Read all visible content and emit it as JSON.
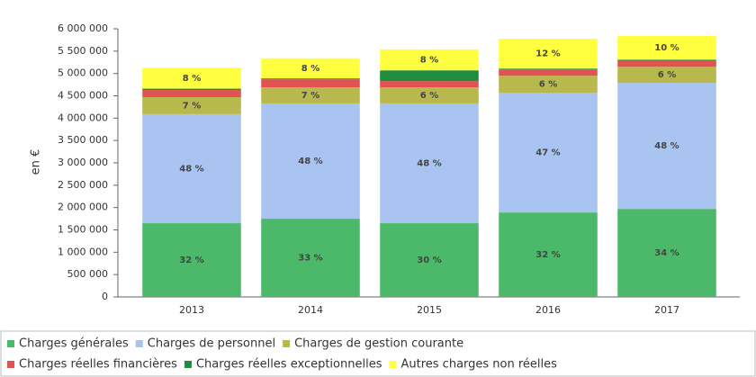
{
  "chart_data": {
    "type": "stacked_bar",
    "y_label": "en €",
    "categories": [
      "2013",
      "2014",
      "2015",
      "2016",
      "2017"
    ],
    "series": [
      {
        "name": "Charges générales",
        "color": "#4cb86a",
        "values": [
          1650000,
          1750000,
          1650000,
          1890000,
          1970000
        ],
        "labels": [
          "32 %",
          "33 %",
          "30 %",
          "32 %",
          "34 %"
        ]
      },
      {
        "name": "Charges de personnel",
        "color": "#a9c4f0",
        "values": [
          2440000,
          2580000,
          2680000,
          2680000,
          2820000
        ],
        "labels": [
          "48 %",
          "48 %",
          "48 %",
          "47 %",
          "48 %"
        ]
      },
      {
        "name": "Charges de gestion courante",
        "color": "#b8b84c",
        "values": [
          380000,
          360000,
          360000,
          380000,
          360000
        ],
        "labels": [
          "7 %",
          "7 %",
          "6 %",
          "6 %",
          "6 %"
        ]
      },
      {
        "name": "Charges réelles financières",
        "color": "#e25252",
        "values": [
          160000,
          180000,
          140000,
          140000,
          130000
        ],
        "labels": [
          null,
          null,
          null,
          null,
          null
        ]
      },
      {
        "name": "Charges réelles exceptionnelles",
        "color": "#1f8c3e",
        "values": [
          30000,
          20000,
          240000,
          20000,
          30000
        ],
        "labels": [
          null,
          null,
          null,
          null,
          null
        ]
      },
      {
        "name": "Autres charges non réelles",
        "color": "#ffff40",
        "values": [
          470000,
          450000,
          470000,
          670000,
          530000
        ],
        "labels": [
          "8 %",
          "8 %",
          "8 %",
          "12 %",
          "10 %"
        ]
      }
    ],
    "ylim": [
      0,
      6000000
    ],
    "yticks": [
      0,
      {
        "value": 500000,
        "label": "500 000"
      },
      {
        "value": 1000000,
        "label": "1 000 000"
      },
      {
        "value": 1500000,
        "label": "1 500 000"
      },
      {
        "value": 2000000,
        "label": "2 000 000"
      },
      {
        "value": 2500000,
        "label": "2 500 000"
      },
      {
        "value": 3000000,
        "label": "3 000 000"
      },
      {
        "value": 3500000,
        "label": "3 500 000"
      },
      {
        "value": 4000000,
        "label": "4 000 000"
      },
      {
        "value": 4500000,
        "label": "4 500 000"
      },
      {
        "value": 5000000,
        "label": "5 000 000"
      },
      {
        "value": 5500000,
        "label": "5 500 000"
      },
      {
        "value": 6000000,
        "label": "6 000 000"
      }
    ]
  }
}
